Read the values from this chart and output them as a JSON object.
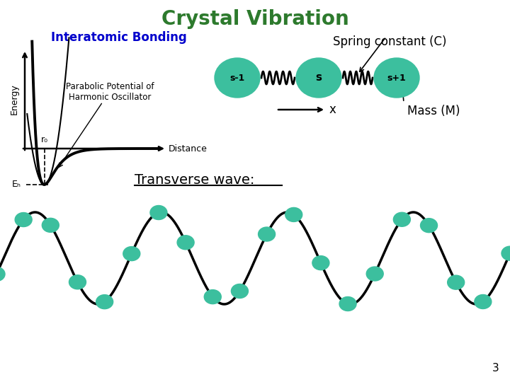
{
  "title": "Crystal Vibration",
  "title_color": "#2d7a2d",
  "title_fontsize": 20,
  "title_fontweight": "bold",
  "interatomic_label": "Interatomic Bonding",
  "interatomic_color": "#0000cc",
  "interatomic_fontsize": 12,
  "spring_constant_label": "Spring constant (C)",
  "spring_constant_fontsize": 12,
  "mass_label": "Mass (M)",
  "mass_fontsize": 12,
  "transverse_label": "Transverse wave:",
  "transverse_fontsize": 14,
  "atom_color": "#3cbf9e",
  "atom_labels": [
    "s-1",
    "s",
    "s+1"
  ],
  "x_label": "x",
  "bg_color": "#ffffff",
  "page_number": "3",
  "energy_label": "Energy",
  "distance_label": "Distance",
  "r0_label": "r₀",
  "eb_label": "Eₕ",
  "parabolic_label1": "Parabolic Potential of",
  "parabolic_label2": "Harmonic Oscillator"
}
